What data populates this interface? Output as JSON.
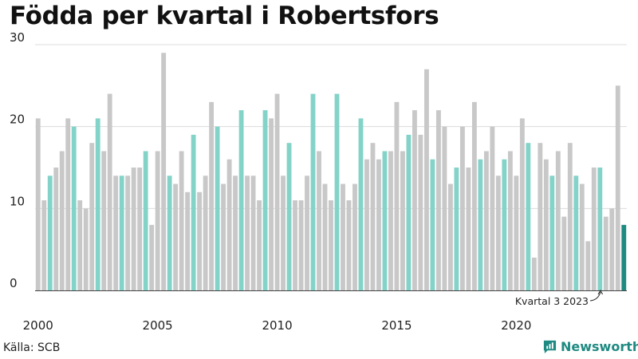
{
  "header": {
    "title": "Födda per kvartal i Robertsfors"
  },
  "footer": {
    "source": "Källa: SCB",
    "brand": "Newsworthy"
  },
  "colors": {
    "gray": "#c8c8c8",
    "q3": "#84d3c9",
    "highlight": "#1f8a82",
    "grid": "#dcdcdc",
    "axis": "#444444",
    "text": "#222222"
  },
  "chart_data": {
    "type": "bar",
    "title": "Födda per kvartal i Robertsfors",
    "xlabel": "",
    "ylabel": "",
    "ylim": [
      0,
      30
    ],
    "yticks": [
      0,
      10,
      20,
      30
    ],
    "xtick_years": [
      2000,
      2005,
      2010,
      2015,
      2020
    ],
    "start_year": 2000,
    "start_quarter": 1,
    "highlight_note": "Kvartal 3 2023",
    "values": [
      21,
      11,
      14,
      15,
      17,
      21,
      20,
      11,
      10,
      18,
      21,
      17,
      24,
      14,
      14,
      14,
      15,
      15,
      17,
      8,
      17,
      29,
      14,
      13,
      17,
      12,
      19,
      12,
      14,
      23,
      20,
      13,
      16,
      14,
      22,
      14,
      14,
      11,
      22,
      21,
      24,
      14,
      18,
      11,
      11,
      14,
      24,
      17,
      13,
      11,
      24,
      13,
      11,
      13,
      21,
      16,
      18,
      16,
      17,
      17,
      23,
      17,
      19,
      22,
      19,
      27,
      16,
      22,
      20,
      13,
      15,
      20,
      15,
      23,
      16,
      17,
      20,
      14,
      16,
      17,
      14,
      21,
      18,
      4,
      18,
      16,
      14,
      17,
      9,
      18,
      14,
      13,
      6,
      15,
      15,
      9,
      10,
      25,
      8
    ]
  }
}
